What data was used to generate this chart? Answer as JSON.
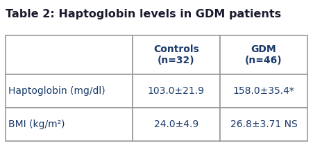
{
  "title": "Table 2: Haptoglobin levels in GDM patients",
  "title_fontsize": 11.5,
  "title_fontweight": "bold",
  "title_color": "#1a1a2e",
  "text_color": "#1a3a6b",
  "background_color": "#ffffff",
  "table_border_color": "#999999",
  "col_headers": [
    "Controls\n(n=32)",
    "GDM\n(n=46)"
  ],
  "row_labels": [
    "Haptoglobin (mg/dl)",
    "BMI (kg/m²)"
  ],
  "cell_data": [
    [
      "103.0±21.9",
      "158.0±35.4*"
    ],
    [
      "24.0±4.9",
      "26.8±3.71 NS"
    ]
  ],
  "header_fontsize": 10,
  "cell_fontsize": 10,
  "label_fontsize": 10
}
